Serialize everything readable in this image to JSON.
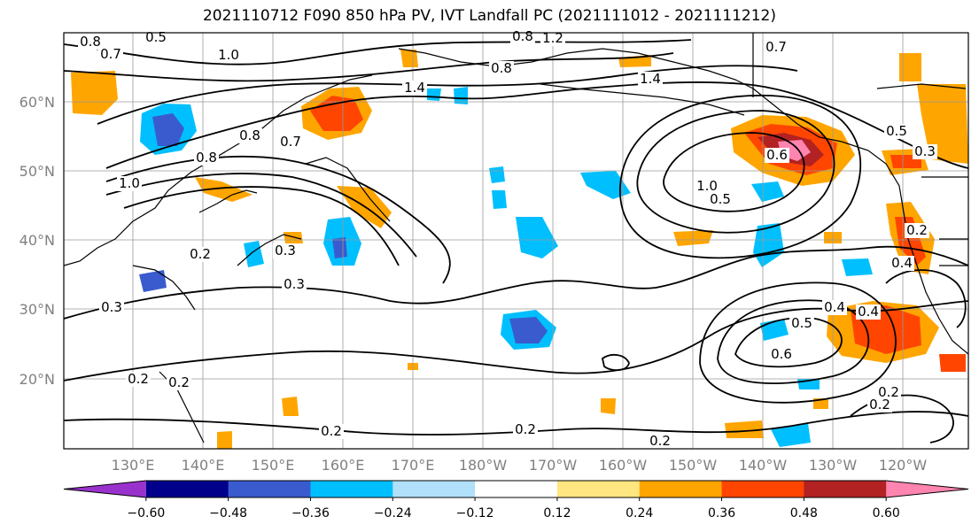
{
  "title": "2021110712 F090 850 hPa PV, IVT Landfall PC (2021111012 - 2021111212)",
  "map": {
    "lat_labels": [
      "60°N",
      "50°N",
      "40°N",
      "30°N",
      "20°N"
    ],
    "lon_labels": [
      "130°E",
      "140°E",
      "150°E",
      "160°E",
      "170°E",
      "180°W",
      "170°W",
      "160°W",
      "150°W",
      "140°W",
      "130°W",
      "120°W"
    ],
    "contour_labels": [
      "0.8",
      "0.7",
      "0.5",
      "1.0",
      "0.8",
      "1.2",
      "0.8",
      "1.4",
      "1.4",
      "0.7",
      "1.0",
      "0.8",
      "0.8",
      "1.0",
      "0.3",
      "0.3",
      "0.2",
      "0.3",
      "0.7",
      "0.5",
      "0.6",
      "0.4",
      "0.4",
      "0.5",
      "0.6",
      "0.4",
      "0.5",
      "0.3",
      "0.2",
      "0.2",
      "0.2",
      "0.2",
      "0.2",
      "0.2",
      "0.2",
      "0.2"
    ]
  },
  "colorbar": {
    "ticks": [
      "−0.60",
      "−0.48",
      "−0.36",
      "−0.24",
      "−0.12",
      "0.12",
      "0.24",
      "0.36",
      "0.48",
      "0.60"
    ],
    "colors": [
      "#9932cc",
      "#00008b",
      "#3a5bcd",
      "#00bfff",
      "#b0e0fa",
      "#ffffff",
      "#ffe680",
      "#ffa500",
      "#ff4500",
      "#b22222",
      "#ff85b0"
    ]
  },
  "chart_data": {
    "type": "heatmap",
    "title": "2021110712 F090 850 hPa PV, IVT Landfall PC (2021111012 - 2021111212)",
    "xlabel": "",
    "ylabel": "",
    "x_ticks": [
      "130°E",
      "140°E",
      "150°E",
      "160°E",
      "170°E",
      "180°W",
      "170°W",
      "160°W",
      "150°W",
      "140°W",
      "130°W",
      "120°W"
    ],
    "y_ticks": [
      "60°N",
      "50°N",
      "40°N",
      "30°N",
      "20°N"
    ],
    "colorbar_levels": [
      -0.6,
      -0.48,
      -0.36,
      -0.24,
      -0.12,
      0.12,
      0.24,
      0.36,
      0.48,
      0.6
    ],
    "contour_levels_labeled": [
      0.2,
      0.3,
      0.4,
      0.5,
      0.6,
      0.7,
      0.8,
      1.0,
      1.2,
      1.4
    ],
    "grid": true
  }
}
